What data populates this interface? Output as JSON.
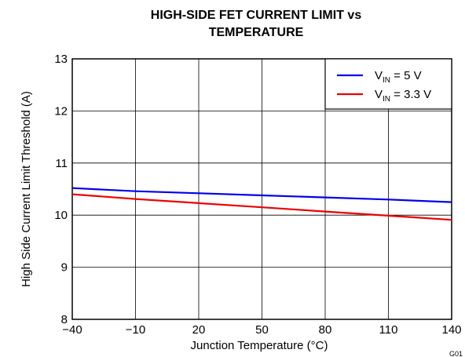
{
  "chart_data": {
    "type": "line",
    "title_lines": [
      "HIGH-SIDE FET CURRENT LIMIT vs",
      "TEMPERATURE"
    ],
    "xlabel": "Junction Temperature (°C)",
    "ylabel": "High Side Current Limit Threshold (A)",
    "xlim": [
      -40,
      140
    ],
    "ylim": [
      8,
      13
    ],
    "xticks": [
      -40,
      -10,
      20,
      50,
      80,
      110,
      140
    ],
    "xtick_labels": [
      "−40",
      "−10",
      "20",
      "50",
      "80",
      "110",
      "140"
    ],
    "yticks": [
      8,
      9,
      10,
      11,
      12,
      13
    ],
    "ytick_labels": [
      "8",
      "9",
      "10",
      "11",
      "12",
      "13"
    ],
    "grid": true,
    "legend_position": "top-right",
    "series": [
      {
        "name_main": "V",
        "name_sub": "IN",
        "name_rest": " = 5 V",
        "color": "#0000ee",
        "x": [
          -40,
          -10,
          20,
          50,
          80,
          110,
          140
        ],
        "y": [
          10.52,
          10.46,
          10.42,
          10.38,
          10.34,
          10.3,
          10.25
        ]
      },
      {
        "name_main": "V",
        "name_sub": "IN",
        "name_rest": " = 3.3 V",
        "color": "#ee0000",
        "x": [
          -40,
          -10,
          20,
          50,
          80,
          110,
          140
        ],
        "y": [
          10.4,
          10.31,
          10.23,
          10.15,
          10.07,
          9.99,
          9.91
        ]
      }
    ],
    "footnote": "G01"
  }
}
